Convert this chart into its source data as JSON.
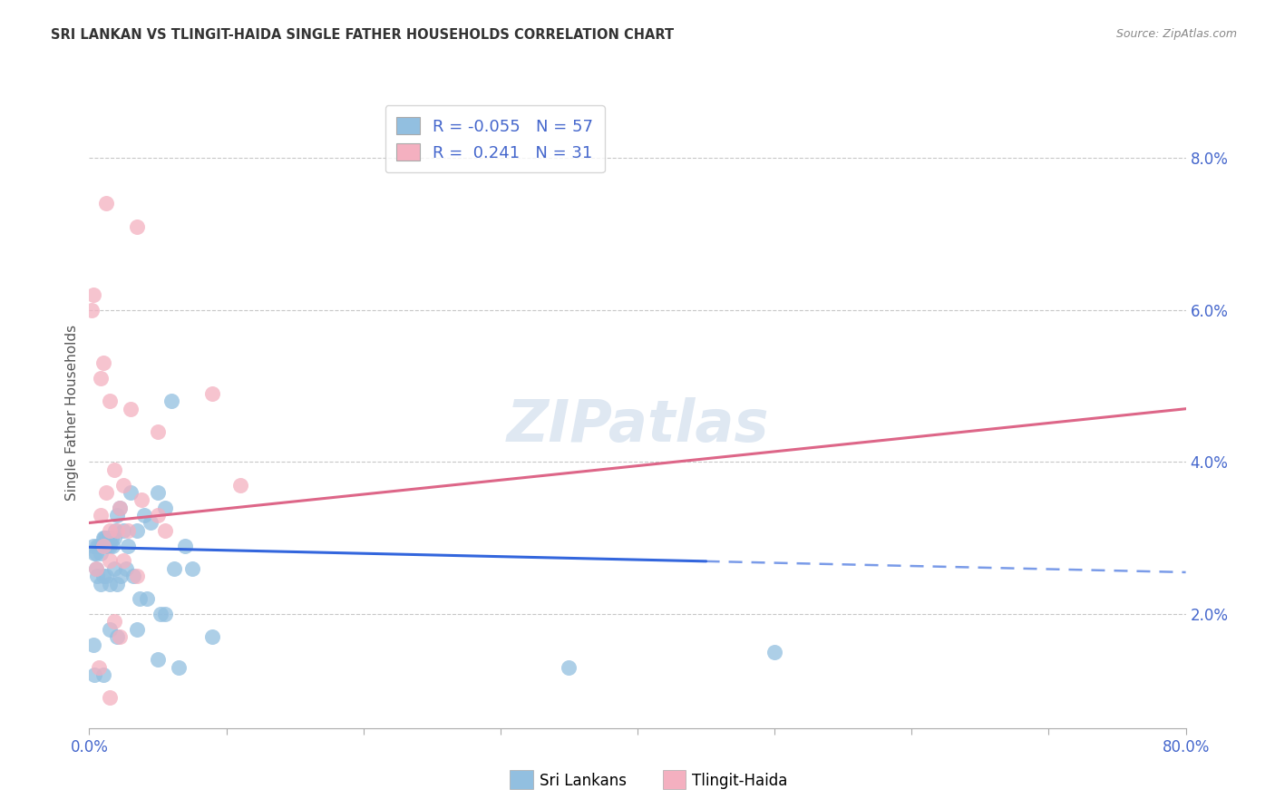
{
  "title": "SRI LANKAN VS TLINGIT-HAIDA SINGLE FATHER HOUSEHOLDS CORRELATION CHART",
  "source": "Source: ZipAtlas.com",
  "ylabel": "Single Father Households",
  "xlim": [
    0,
    80
  ],
  "ylim": [
    0.5,
    8.8
  ],
  "yticks": [
    2,
    4,
    6,
    8
  ],
  "ytick_labels": [
    "2.0%",
    "4.0%",
    "6.0%",
    "8.0%"
  ],
  "legend_blue_label": "R = -0.055   N = 57",
  "legend_pink_label": "R =  0.241   N = 31",
  "blue_color": "#92bfe0",
  "pink_color": "#f4b0c0",
  "blue_line_color": "#3366dd",
  "pink_line_color": "#dd6688",
  "watermark": "ZIPatlas",
  "blue_scatter": [
    [
      0.3,
      2.9
    ],
    [
      0.4,
      2.8
    ],
    [
      0.5,
      2.8
    ],
    [
      0.6,
      2.9
    ],
    [
      0.7,
      2.9
    ],
    [
      0.8,
      2.8
    ],
    [
      0.9,
      2.9
    ],
    [
      1.0,
      3.0
    ],
    [
      1.1,
      3.0
    ],
    [
      1.2,
      3.0
    ],
    [
      1.3,
      2.9
    ],
    [
      1.4,
      3.0
    ],
    [
      1.5,
      2.9
    ],
    [
      1.6,
      3.0
    ],
    [
      1.7,
      2.9
    ],
    [
      1.8,
      3.0
    ],
    [
      1.9,
      3.1
    ],
    [
      2.0,
      3.3
    ],
    [
      2.2,
      3.4
    ],
    [
      2.5,
      3.1
    ],
    [
      2.8,
      2.9
    ],
    [
      3.0,
      3.6
    ],
    [
      3.5,
      3.1
    ],
    [
      4.0,
      3.3
    ],
    [
      4.5,
      3.2
    ],
    [
      5.0,
      3.6
    ],
    [
      5.5,
      3.4
    ],
    [
      6.0,
      4.8
    ],
    [
      0.5,
      2.6
    ],
    [
      0.6,
      2.5
    ],
    [
      0.8,
      2.4
    ],
    [
      1.0,
      2.5
    ],
    [
      1.2,
      2.5
    ],
    [
      1.5,
      2.4
    ],
    [
      1.8,
      2.6
    ],
    [
      2.0,
      2.4
    ],
    [
      2.3,
      2.5
    ],
    [
      2.7,
      2.6
    ],
    [
      3.2,
      2.5
    ],
    [
      3.7,
      2.2
    ],
    [
      4.2,
      2.2
    ],
    [
      5.2,
      2.0
    ],
    [
      6.2,
      2.6
    ],
    [
      7.0,
      2.9
    ],
    [
      7.5,
      2.6
    ],
    [
      0.3,
      1.6
    ],
    [
      1.5,
      1.8
    ],
    [
      2.0,
      1.7
    ],
    [
      3.5,
      1.8
    ],
    [
      5.5,
      2.0
    ],
    [
      9.0,
      1.7
    ],
    [
      0.4,
      1.2
    ],
    [
      1.0,
      1.2
    ],
    [
      5.0,
      1.4
    ],
    [
      6.5,
      1.3
    ],
    [
      35.0,
      1.3
    ],
    [
      50.0,
      1.5
    ]
  ],
  "pink_scatter": [
    [
      0.3,
      6.2
    ],
    [
      1.2,
      7.4
    ],
    [
      3.5,
      7.1
    ],
    [
      0.2,
      6.0
    ],
    [
      1.0,
      5.3
    ],
    [
      0.8,
      5.1
    ],
    [
      1.5,
      4.8
    ],
    [
      3.0,
      4.7
    ],
    [
      1.8,
      3.9
    ],
    [
      2.5,
      3.7
    ],
    [
      5.0,
      4.4
    ],
    [
      9.0,
      4.9
    ],
    [
      11.0,
      3.7
    ],
    [
      1.2,
      3.6
    ],
    [
      2.2,
      3.4
    ],
    [
      3.8,
      3.5
    ],
    [
      5.0,
      3.3
    ],
    [
      0.8,
      3.3
    ],
    [
      1.5,
      3.1
    ],
    [
      2.0,
      3.1
    ],
    [
      2.8,
      3.1
    ],
    [
      5.5,
      3.1
    ],
    [
      1.0,
      2.9
    ],
    [
      1.5,
      2.7
    ],
    [
      2.5,
      2.7
    ],
    [
      0.5,
      2.6
    ],
    [
      3.5,
      2.5
    ],
    [
      1.8,
      1.9
    ],
    [
      2.2,
      1.7
    ],
    [
      0.7,
      1.3
    ],
    [
      1.5,
      0.9
    ]
  ],
  "blue_trendline": {
    "x_start": 0,
    "x_end": 80,
    "y_start": 2.88,
    "y_end": 2.55
  },
  "blue_trendline_solid_end": 45,
  "pink_trendline": {
    "x_start": 0,
    "x_end": 80,
    "y_start": 3.2,
    "y_end": 4.7
  },
  "grid_color": "#c8c8c8",
  "background_color": "#ffffff",
  "axis_label_color": "#4466cc",
  "title_color": "#333333",
  "source_color": "#888888",
  "ylabel_color": "#555555"
}
